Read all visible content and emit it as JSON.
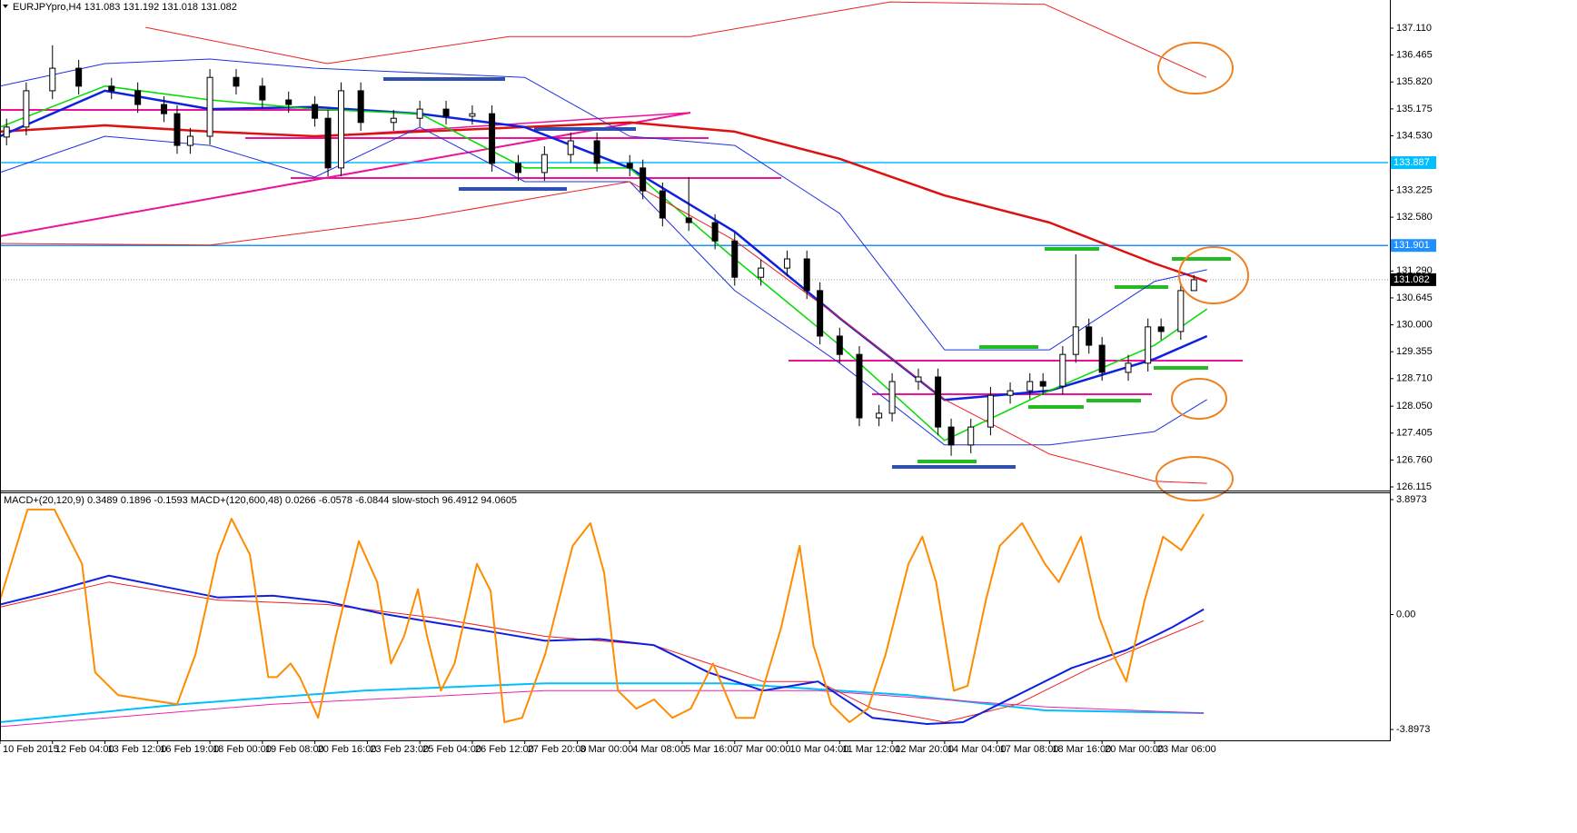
{
  "header": "EURJPYpro,H4  131.083 131.192 131.018 131.082",
  "chart_data": [
    {
      "type": "candlestick",
      "x": [
        1,
        4,
        8,
        12,
        17,
        21,
        25,
        27,
        29,
        32,
        36,
        40,
        44,
        48,
        50,
        52,
        55,
        60,
        64,
        68,
        72,
        75,
        79,
        83,
        87,
        91,
        96,
        98,
        101,
        105,
        109,
        112,
        116,
        120,
        123,
        125,
        128,
        131,
        134,
        136,
        140,
        143,
        145,
        148,
        151,
        154,
        157,
        159,
        162,
        164,
        166,
        168,
        172,
        175,
        177,
        180,
        182
      ],
      "open": [
        134.5,
        134.74,
        135.61,
        136.15,
        135.72,
        135.61,
        135.28,
        135.06,
        134.3,
        134.52,
        135.93,
        135.72,
        135.39,
        135.28,
        134.95,
        133.76,
        135.61,
        134.85,
        134.95,
        135.17,
        135.0,
        135.06,
        133.87,
        133.65,
        134.08,
        134.41,
        133.87,
        133.76,
        133.21,
        132.56,
        132.45,
        132.01,
        131.14,
        131.36,
        131.58,
        130.82,
        129.73,
        129.29,
        127.77,
        127.88,
        128.64,
        128.75,
        127.55,
        127.12,
        127.55,
        128.31,
        128.42,
        128.64,
        128.53,
        129.29,
        129.95,
        129.51,
        128.86,
        129.08,
        129.95,
        129.84,
        130.82
      ],
      "high": [
        134.94,
        135.81,
        136.7,
        136.35,
        135.92,
        135.81,
        135.48,
        135.26,
        134.72,
        136.13,
        136.13,
        135.92,
        135.59,
        135.48,
        135.15,
        135.81,
        135.81,
        135.15,
        135.37,
        135.37,
        135.26,
        135.26,
        134.07,
        134.28,
        134.61,
        134.61,
        134.07,
        133.96,
        133.41,
        133.54,
        132.65,
        132.21,
        131.56,
        131.78,
        131.78,
        131.02,
        129.93,
        129.49,
        128.08,
        128.84,
        128.95,
        128.95,
        127.75,
        127.75,
        128.51,
        128.62,
        128.84,
        128.84,
        129.49,
        131.69,
        130.15,
        129.71,
        129.28,
        130.15,
        130.15,
        131.02,
        131.19
      ],
      "low": [
        134.3,
        134.54,
        135.41,
        135.52,
        135.41,
        135.08,
        134.86,
        134.1,
        134.1,
        134.32,
        135.52,
        135.19,
        135.08,
        134.75,
        133.56,
        133.56,
        134.65,
        134.65,
        134.75,
        134.8,
        134.8,
        133.67,
        133.45,
        133.45,
        133.88,
        133.67,
        133.56,
        133.01,
        132.36,
        132.25,
        131.81,
        130.94,
        130.94,
        131.16,
        130.62,
        129.53,
        129.09,
        127.57,
        127.57,
        127.68,
        128.44,
        127.35,
        126.86,
        126.92,
        127.35,
        128.11,
        128.22,
        128.33,
        128.33,
        129.09,
        129.31,
        128.66,
        128.66,
        128.88,
        129.64,
        129.64,
        130.88
      ],
      "close": [
        134.74,
        135.61,
        136.15,
        135.72,
        135.61,
        135.28,
        135.06,
        134.3,
        134.52,
        135.93,
        135.72,
        135.39,
        135.28,
        134.95,
        133.76,
        135.61,
        134.85,
        134.95,
        135.17,
        135.0,
        135.06,
        133.87,
        133.65,
        134.08,
        134.41,
        133.87,
        133.76,
        133.21,
        132.56,
        132.45,
        132.01,
        131.14,
        131.36,
        131.58,
        130.82,
        129.73,
        129.29,
        127.77,
        127.88,
        128.64,
        128.75,
        127.55,
        127.12,
        127.55,
        128.31,
        128.42,
        128.64,
        128.53,
        129.29,
        129.95,
        129.51,
        128.86,
        129.08,
        129.95,
        129.84,
        130.82,
        131.08
      ],
      "xlim": [
        0,
        211.6
      ],
      "ylim": [
        126.028,
        137.785
      ],
      "yticks": [
        {
          "value": 137.11,
          "label": "137.110"
        },
        136.465,
        {
          "value": 135.82,
          "label": "135.820"
        },
        135.175,
        {
          "value": 134.53,
          "label": "134.530"
        },
        133.225,
        {
          "value": 132.58,
          "label": "132.580"
        },
        {
          "value": 131.29,
          "label": "131.290"
        },
        130.645,
        {
          "value": 130,
          "label": "130.000"
        },
        129.355,
        {
          "value": 128.71,
          "label": "128.710"
        },
        {
          "value": 128.05,
          "label": "128.050"
        },
        127.405,
        {
          "value": 126.76,
          "label": "126.760"
        },
        126.115
      ],
      "levels": [
        {
          "value": 133.887,
          "color": "#00bfff"
        },
        {
          "value": 131.901,
          "color": "#1e90ff"
        }
      ],
      "last_price": 131.082,
      "overlays": [
        {
          "color": "#dd1111",
          "width": 2.5,
          "x": [
            0,
            16,
            32,
            48,
            64,
            80,
            96,
            112,
            128,
            144,
            160,
            176,
            184
          ],
          "values": [
            134.63,
            134.78,
            134.63,
            134.52,
            134.63,
            134.74,
            134.85,
            134.63,
            133.98,
            133.1,
            132.45,
            131.47,
            131.04
          ]
        },
        {
          "color": "#1020e0",
          "width": 2.5,
          "x": [
            0,
            16,
            32,
            48,
            64,
            80,
            96,
            112,
            128,
            144,
            160,
            176,
            184
          ],
          "values": [
            134.52,
            135.61,
            135.17,
            135.22,
            135.06,
            134.74,
            133.76,
            132.23,
            130.16,
            128.2,
            128.42,
            129.18,
            129.73
          ]
        },
        {
          "color": "#00dd00",
          "width": 1.5,
          "x": [
            0,
            16,
            32,
            48,
            64,
            80,
            96,
            112,
            128,
            144,
            160,
            176,
            184
          ],
          "values": [
            134.74,
            135.72,
            135.39,
            135.17,
            135.06,
            133.76,
            133.76,
            131.58,
            129.51,
            127.23,
            128.42,
            129.51,
            130.38
          ]
        },
        {
          "color": "#2030e0",
          "width": 1,
          "x": [
            0,
            16,
            32,
            48,
            64,
            80,
            96,
            112,
            128,
            144,
            160,
            176,
            184
          ],
          "values": [
            135.72,
            136.26,
            136.37,
            136.15,
            136.04,
            135.93,
            134.52,
            134.3,
            132.67,
            129.4,
            129.4,
            131.04,
            131.32
          ]
        },
        {
          "color": "#2030e0",
          "width": 1,
          "x": [
            0,
            16,
            32,
            48,
            64,
            80,
            96,
            112,
            128,
            144,
            160,
            176,
            184
          ],
          "values": [
            133.65,
            134.52,
            134.3,
            133.54,
            134.74,
            133.43,
            133.43,
            130.82,
            129.08,
            127.12,
            127.12,
            127.44,
            128.21
          ]
        },
        {
          "color": "#ee2020",
          "width": 1,
          "x": [
            22.2,
            49.9,
            77.6,
            105.3,
            135.7,
            159.3,
            183.9
          ],
          "values": [
            137.13,
            136.26,
            136.91,
            136.91,
            137.74,
            137.68,
            135.93
          ]
        },
        {
          "color": "#ee2020",
          "width": 1,
          "x": [
            0,
            32,
            64,
            96,
            112,
            128,
            144,
            160,
            176,
            184
          ],
          "values": [
            131.95,
            131.91,
            132.56,
            133.43,
            132.02,
            130.17,
            128.21,
            126.9,
            126.25,
            126.2
          ]
        }
      ]
    },
    {
      "type": "line",
      "title": "MACD+(20,120,9) 0.3489 0.1896 -0.1593  MACD+(120,600,48) 0.0266 -6.0578 -6.0844  slow-stoch 96.4912 94.0605",
      "xlim": [
        0,
        211.6
      ],
      "xticks": [
        {
          "value": 0,
          "label": "10 Feb 2015"
        },
        {
          "value": 8,
          "label": "12 Feb 04:00"
        },
        {
          "value": 16,
          "label": "13 Feb 12:00"
        },
        {
          "value": 24,
          "label": "16 Feb 19:00"
        },
        {
          "value": 32,
          "label": "18 Feb 00:00"
        },
        {
          "value": 40,
          "label": "19 Feb 08:00"
        },
        {
          "value": 48,
          "label": "20 Feb 16:00"
        },
        {
          "value": 56,
          "label": "23 Feb 23:00"
        },
        {
          "value": 64,
          "label": "25 Feb 04:00"
        },
        {
          "value": 72,
          "label": "26 Feb 12:00"
        },
        {
          "value": 80,
          "label": "27 Feb 20:00"
        },
        {
          "value": 88,
          "label": "3 Mar 00:00"
        },
        {
          "value": 96,
          "label": "4 Mar 08:00"
        },
        {
          "value": 104,
          "label": "5 Mar 16:00"
        },
        {
          "value": 112,
          "label": "7 Mar 00:00"
        },
        {
          "value": 120,
          "label": "10 Mar 04:00"
        },
        {
          "value": 128,
          "label": "11 Mar 12:00"
        },
        {
          "value": 136,
          "label": "12 Mar 20:00"
        },
        {
          "value": 144,
          "label": "14 Mar 04:00"
        },
        {
          "value": 152,
          "label": "17 Mar 08:00"
        },
        {
          "value": 160,
          "label": "18 Mar 16:00"
        },
        {
          "value": 168,
          "label": "20 Mar 00:00"
        },
        {
          "value": 176,
          "label": "23 Mar 06:00"
        }
      ],
      "ylim": [
        -4.265,
        4.112
      ],
      "yticks": [
        3.8973,
        {
          "value": 0,
          "label": "0.00"
        },
        -3.8973
      ],
      "series": [
        {
          "color": "#00bfff",
          "width": 2,
          "x": [
            0,
            27.7,
            55.4,
            83.1,
            110.8,
            138.5,
            159.3,
            183.5
          ],
          "values": [
            -3.65,
            -3.04,
            -2.58,
            -2.33,
            -2.33,
            -2.73,
            -3.25,
            -3.34
          ]
        },
        {
          "color": "#ee22aa",
          "width": 1,
          "x": [
            0,
            41.6,
            83.1,
            124.7,
            159.3,
            183.5
          ],
          "values": [
            -3.8,
            -3.04,
            -2.58,
            -2.58,
            -3.13,
            -3.34
          ]
        },
        {
          "color": "#ee2020",
          "width": 1,
          "x": [
            0,
            16.6,
            33.2,
            49.9,
            66.5,
            83.1,
            99.7,
            116.3,
            124.7,
            133,
            144,
            155.1,
            166.2,
            174.5,
            183.5
          ],
          "values": [
            0.25,
            1.1,
            0.49,
            0.34,
            -0.12,
            -0.74,
            -1.04,
            -2.27,
            -2.27,
            -3.19,
            -3.65,
            -3.04,
            -1.81,
            -1.04,
            -0.21
          ]
        },
        {
          "color": "#1020e0",
          "width": 2,
          "x": [
            0,
            8.3,
            16.6,
            24.9,
            33.2,
            41.6,
            49.9,
            58.2,
            66.5,
            74.8,
            83.1,
            91.4,
            99.7,
            108,
            116.3,
            124.7,
            133,
            141.3,
            146.8,
            155.1,
            163.4,
            171.7,
            178.7,
            183.5
          ],
          "values": [
            0.34,
            0.8,
            1.32,
            0.95,
            0.58,
            0.64,
            0.43,
            0.03,
            -0.28,
            -0.58,
            -0.89,
            -0.83,
            -1.04,
            -1.96,
            -2.58,
            -2.27,
            -3.5,
            -3.71,
            -3.65,
            -2.73,
            -1.81,
            -1.2,
            -0.43,
            0.18
          ]
        },
        {
          "color": "#ff8c00",
          "width": 2,
          "x": [
            0,
            4.2,
            8.3,
            12.5,
            14.5,
            18,
            22.2,
            27,
            29.8,
            33.2,
            35.3,
            38.1,
            40.9,
            42.2,
            44.3,
            45.7,
            48.5,
            51.2,
            54.7,
            57.5,
            59.6,
            61.6,
            63.7,
            65.1,
            67.2,
            69.3,
            72.7,
            74.8,
            76.9,
            79.6,
            83.1,
            87.3,
            90,
            92.1,
            94.2,
            97,
            99.7,
            102.5,
            105.3,
            108.7,
            112.2,
            115,
            119.1,
            121.9,
            124,
            125.3,
            126.7,
            129.5,
            132.3,
            135,
            138.5,
            140.6,
            142.7,
            145.4,
            147.5,
            150.3,
            152.4,
            155.8,
            159.3,
            161.4,
            164.8,
            167.6,
            169.7,
            171.7,
            174.5,
            177.3,
            180.1,
            183.5
          ],
          "values": [
            0.49,
            3.56,
            3.56,
            1.72,
            -1.96,
            -2.73,
            -2.88,
            -3.04,
            -1.35,
            2.03,
            3.25,
            2.03,
            -2.12,
            -2.12,
            -1.66,
            -2.12,
            -3.5,
            -0.74,
            2.49,
            1.1,
            -1.66,
            -0.74,
            0.86,
            -0.74,
            -2.58,
            -1.66,
            1.72,
            0.8,
            -3.65,
            -3.5,
            -1.35,
            2.33,
            3.1,
            1.41,
            -2.58,
            -3.19,
            -2.88,
            -3.5,
            -3.19,
            -1.66,
            -3.5,
            -3.5,
            -0.43,
            2.33,
            -1.04,
            -1.96,
            -3.04,
            -3.65,
            -3.19,
            -1.35,
            1.72,
            2.64,
            1.1,
            -2.58,
            -2.42,
            0.49,
            2.33,
            3.1,
            1.72,
            1.1,
            2.64,
            -0.12,
            -1.35,
            -2.27,
            0.49,
            2.64,
            2.18,
            3.41
          ]
        }
      ]
    }
  ]
}
